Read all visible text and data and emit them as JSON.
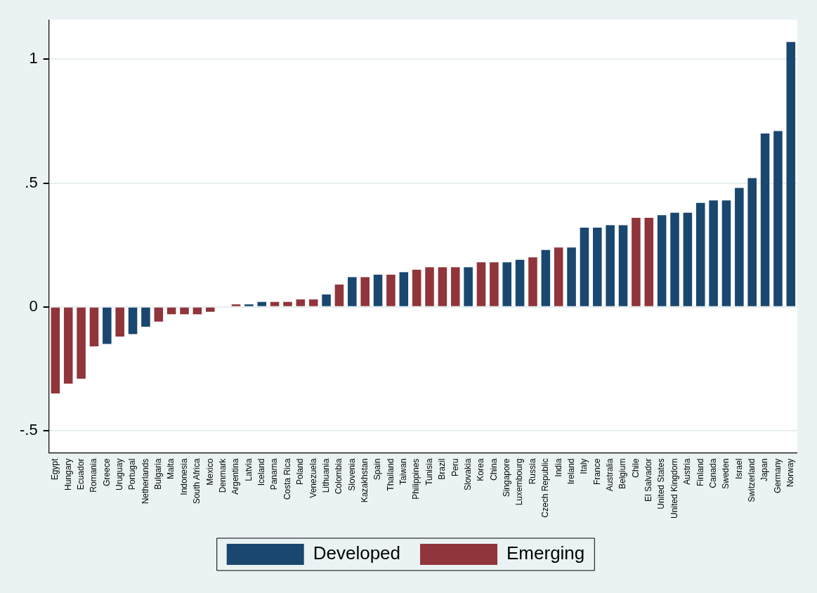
{
  "chart_data": {
    "type": "bar",
    "stacked": true,
    "categories": [
      "Egypt",
      "Hungary",
      "Ecuador",
      "Romania",
      "Greece",
      "Uruguay",
      "Portugal",
      "Netherlands",
      "Bulgaria",
      "Malta",
      "Indonesia",
      "South Africa",
      "Mexico",
      "Denmark",
      "Argentina",
      "Latvia",
      "Iceland",
      "Panama",
      "Costa Rica",
      "Poland",
      "Venezuela",
      "Lithuania",
      "Colombia",
      "Slovenia",
      "Kazakhstan",
      "Spain",
      "Thailand",
      "Taiwan",
      "Philippines",
      "Tunisia",
      "Brazil",
      "Peru",
      "Slovakia",
      "Korea",
      "China",
      "Singapore",
      "Luxembourg",
      "Russia",
      "Czech Republic",
      "India",
      "Ireland",
      "Italy",
      "France",
      "Australia",
      "Belgium",
      "Chile",
      "El Salvador",
      "United States",
      "United Kingdom",
      "Austria",
      "Finland",
      "Canada",
      "Sweden",
      "Israel",
      "Switzerland",
      "Japan",
      "Germany",
      "Norway"
    ],
    "series": [
      {
        "name": "Developed",
        "color": "#1a476f",
        "values": [
          null,
          null,
          null,
          null,
          -0.15,
          null,
          -0.11,
          -0.08,
          null,
          null,
          null,
          null,
          null,
          0,
          null,
          0.01,
          0.02,
          null,
          null,
          null,
          null,
          0.05,
          null,
          0.12,
          null,
          0.13,
          null,
          0.14,
          null,
          null,
          null,
          null,
          0.16,
          null,
          null,
          0.18,
          0.19,
          null,
          0.23,
          null,
          0.24,
          0.32,
          0.32,
          0.33,
          0.33,
          null,
          null,
          0.37,
          0.38,
          0.38,
          0.42,
          0.43,
          0.43,
          0.48,
          0.52,
          0.7,
          0.71,
          1.07
        ]
      },
      {
        "name": "Emerging",
        "color": "#90353b",
        "values": [
          -0.35,
          -0.31,
          -0.29,
          -0.16,
          null,
          -0.12,
          null,
          null,
          -0.06,
          -0.03,
          -0.03,
          -0.03,
          -0.02,
          null,
          0.01,
          null,
          null,
          0.02,
          0.02,
          0.03,
          0.03,
          null,
          0.09,
          null,
          0.12,
          null,
          0.13,
          null,
          0.15,
          0.16,
          0.16,
          0.16,
          null,
          0.18,
          0.18,
          null,
          null,
          0.2,
          null,
          0.24,
          null,
          null,
          null,
          null,
          null,
          0.36,
          0.36,
          null,
          null,
          null,
          null,
          null,
          null,
          null,
          null,
          null,
          null,
          null
        ]
      }
    ],
    "ylim": [
      -0.59,
      1.16
    ],
    "yticks": [
      {
        "value": -0.5,
        "label": "-.5"
      },
      0,
      {
        "value": 0.5,
        "label": ".5"
      },
      1
    ],
    "grid": "y",
    "legend": "bottom"
  }
}
